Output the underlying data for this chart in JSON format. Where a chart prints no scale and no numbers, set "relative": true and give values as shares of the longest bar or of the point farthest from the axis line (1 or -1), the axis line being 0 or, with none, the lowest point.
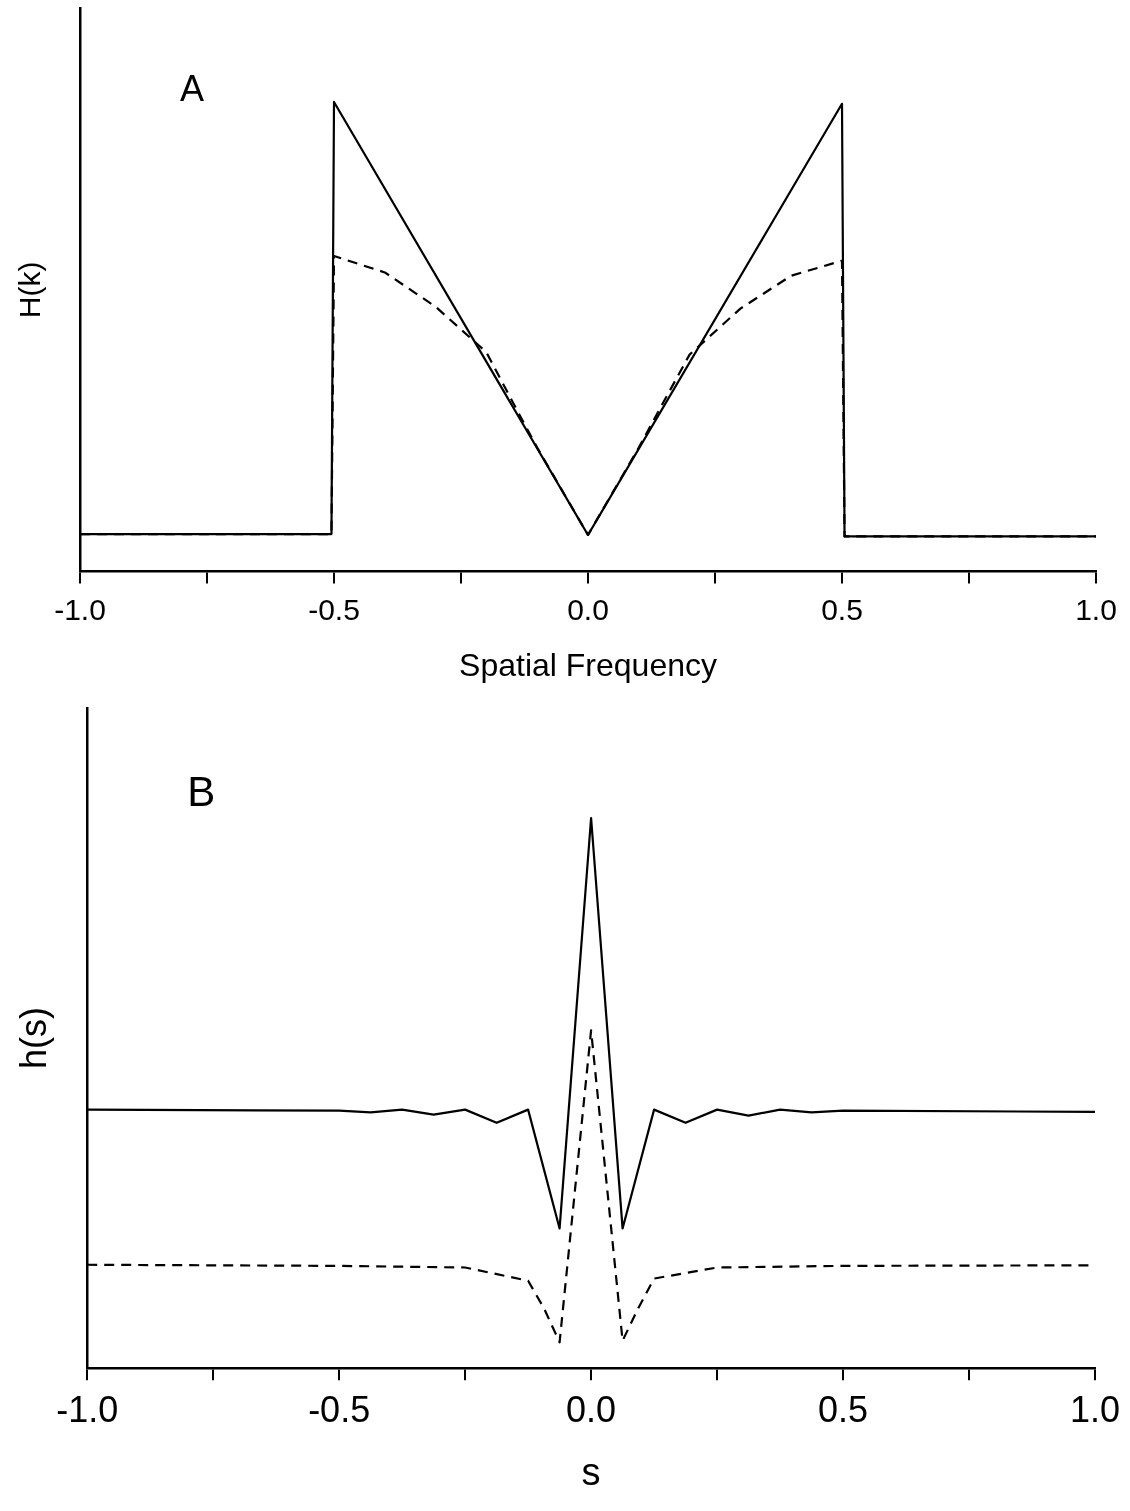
{
  "chart_data": [
    {
      "type": "line",
      "relative": true,
      "xlabel": "Spatial Frequency",
      "ylabel": "H(k)",
      "annotations": [
        "A"
      ],
      "xlim": [
        -1,
        1
      ],
      "xticks": [
        {
          "value": -1,
          "label": "-1.0"
        },
        {
          "value": -0.75,
          "label": null
        },
        {
          "value": -0.5,
          "label": "-0.5"
        },
        {
          "value": -0.25,
          "label": null
        },
        {
          "value": 0,
          "label": "0.0"
        },
        {
          "value": 0.25,
          "label": null
        },
        {
          "value": 0.5,
          "label": "0.5"
        },
        {
          "value": 0.75,
          "label": null
        },
        {
          "value": 1,
          "label": "1.0"
        }
      ],
      "tick_labels": "x",
      "legend": false,
      "marker": "none",
      "grid": false,
      "series": [
        {
          "color": "#000000",
          "line_style": "solid",
          "x": [
            -1,
            -0.505,
            -0.5,
            0,
            0.5,
            0.505,
            1
          ],
          "values": [
            0.08,
            0.08,
            1,
            0.078,
            0.996,
            0.075,
            0.075
          ]
        },
        {
          "color": "#000000",
          "line_style": "dashed",
          "x": [
            -1,
            -0.505,
            -0.5,
            -0.4,
            -0.3,
            -0.2,
            -0.14,
            -0.1,
            0,
            0.1,
            0.14,
            0.2,
            0.3,
            0.4,
            0.5,
            0.505,
            1
          ],
          "values": [
            0.08,
            0.08,
            0.672,
            0.637,
            0.564,
            0.467,
            0.344,
            0.264,
            0.078,
            0.264,
            0.344,
            0.462,
            0.56,
            0.63,
            0.662,
            0.075,
            0.075
          ]
        }
      ]
    },
    {
      "type": "line",
      "relative": true,
      "xlabel": "s",
      "ylabel": "h(s)",
      "annotations": [
        "B"
      ],
      "xlim": [
        -1,
        1
      ],
      "xticks": [
        {
          "value": -1,
          "label": "-1.0"
        },
        {
          "value": -0.75,
          "label": null
        },
        {
          "value": -0.5,
          "label": "-0.5"
        },
        {
          "value": -0.25,
          "label": null
        },
        {
          "value": 0,
          "label": "0.0"
        },
        {
          "value": 0.25,
          "label": null
        },
        {
          "value": 0.5,
          "label": "0.5"
        },
        {
          "value": 0.75,
          "label": null
        },
        {
          "value": 1,
          "label": "1.0"
        }
      ],
      "tick_labels": "x",
      "legend": false,
      "marker": "none",
      "grid": false,
      "series": [
        {
          "color": "#000000",
          "line_style": "solid",
          "x": [
            -1,
            -0.5,
            -0.4375,
            -0.375,
            -0.3125,
            -0.25,
            -0.1875,
            -0.125,
            -0.0625,
            0,
            0.0625,
            0.125,
            0.1875,
            0.25,
            0.3125,
            0.375,
            0.4375,
            0.5,
            1
          ],
          "values": [
            0.47,
            0.468,
            0.465,
            0.47,
            0.461,
            0.47,
            0.446,
            0.47,
            0.254,
            1,
            0.254,
            0.47,
            0.446,
            0.47,
            0.459,
            0.47,
            0.465,
            0.468,
            0.466
          ]
        },
        {
          "color": "#000000",
          "line_style": "dashed",
          "x": [
            -1,
            -0.5,
            -0.25,
            -0.125,
            -0.093,
            -0.0625,
            0,
            0.0625,
            0.093,
            0.125,
            0.25,
            0.5,
            1
          ],
          "values": [
            0.188,
            0.186,
            0.183,
            0.159,
            0.108,
            0.047,
            0.614,
            0.05,
            0.108,
            0.163,
            0.183,
            0.186,
            0.187
          ]
        }
      ]
    }
  ]
}
